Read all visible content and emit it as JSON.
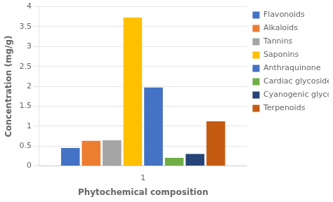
{
  "chart_data": {
    "type": "bar",
    "xlabel": "Phytochemical composition",
    "ylabel": "Concentration (mg/g)",
    "categories": [
      "1"
    ],
    "series": [
      {
        "name": "Flavonoids",
        "color": "#4472C4",
        "values": [
          0.45
        ]
      },
      {
        "name": "Alkaloids",
        "color": "#ED7D31",
        "values": [
          0.63
        ]
      },
      {
        "name": "Tannins",
        "color": "#A5A5A5",
        "values": [
          0.64
        ]
      },
      {
        "name": "Saponins",
        "color": "#FFC000",
        "values": [
          3.73
        ]
      },
      {
        "name": "Anthraquinone",
        "color": "#4472C4",
        "values": [
          1.97
        ]
      },
      {
        "name": "Cardiac glycosides",
        "color": "#70AD47",
        "values": [
          0.2
        ]
      },
      {
        "name": "Cyanogenic glycosides",
        "color": "#264478",
        "values": [
          0.3
        ]
      },
      {
        "name": "Terpenoids",
        "color": "#C55A11",
        "values": [
          1.12
        ]
      }
    ],
    "ylim": [
      0,
      4
    ],
    "yticks": [
      0,
      0.5,
      1,
      1.5,
      2,
      2.5,
      3,
      3.5,
      4
    ],
    "grid": true,
    "legend": "right"
  }
}
